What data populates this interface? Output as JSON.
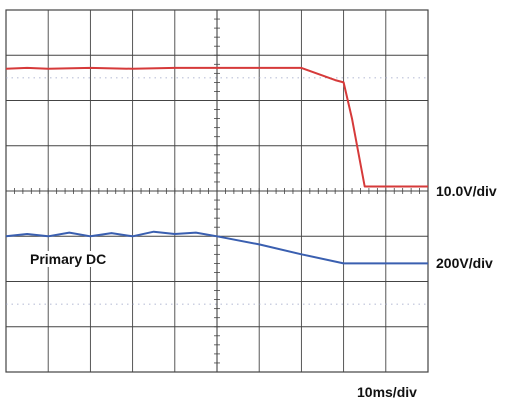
{
  "chart_data": {
    "type": "line",
    "title": "",
    "xlabel": "",
    "ylabel": "",
    "grid": true,
    "x_divisions": 10,
    "y_divisions": 8,
    "x_unit": "div",
    "y_unit": "div",
    "xlim": [
      0,
      10
    ],
    "ylim": [
      -4,
      4
    ],
    "scales": {
      "channel1": "10.0V/div",
      "channel2": "200V/div",
      "time": "10ms/div"
    },
    "annotation": "Primary DC",
    "colors": {
      "channel1": "#d63a3a",
      "channel2": "#3a5fb0",
      "grid": "#444444",
      "faint_grid": "#9aa2c4"
    },
    "series": [
      {
        "x": [
          0,
          0.5,
          1,
          2,
          3,
          4,
          5,
          6,
          7,
          7.8,
          8,
          8.2,
          8.5,
          9,
          9.5,
          10
        ],
        "y": [
          2.7,
          2.72,
          2.7,
          2.72,
          2.7,
          2.72,
          2.72,
          2.72,
          2.72,
          2.45,
          2.4,
          1.6,
          0.1,
          0.1,
          0.1,
          0.1
        ]
      },
      {
        "x": [
          0,
          0.5,
          1,
          1.5,
          2,
          2.5,
          3,
          3.5,
          4,
          4.5,
          5,
          6,
          7,
          8,
          8.5,
          9,
          10
        ],
        "y": [
          -1.0,
          -0.95,
          -1.0,
          -0.92,
          -1.0,
          -0.93,
          -1.0,
          -0.9,
          -0.95,
          -0.92,
          -1.0,
          -1.18,
          -1.4,
          -1.6,
          -1.6,
          -1.6,
          -1.6
        ]
      }
    ]
  }
}
